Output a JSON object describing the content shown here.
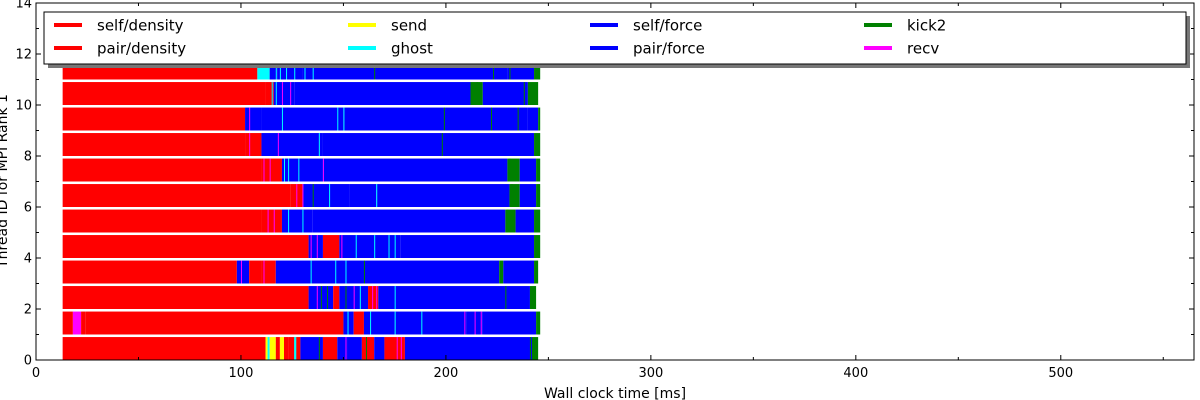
{
  "chart_data": {
    "type": "bar",
    "orientation": "horizontal-stacked-timeline",
    "title": "",
    "xlabel": "Wall clock time [ms]",
    "ylabel": "Thread ID for MPI Rank 1",
    "xlim": [
      0,
      565
    ],
    "ylim": [
      0,
      14
    ],
    "xticks": [
      0,
      100,
      200,
      300,
      400,
      500
    ],
    "yticks": [
      0,
      2,
      4,
      6,
      8,
      10,
      12,
      14
    ],
    "grid": false,
    "legend_position": "top, full width, 5 columns",
    "series": [
      {
        "name": "self/density",
        "color": "#ff0000"
      },
      {
        "name": "pair/density",
        "color": "#ff0000"
      },
      {
        "name": "send",
        "color": "#ffff00"
      },
      {
        "name": "ghost",
        "color": "#00ffff"
      },
      {
        "name": "self/force",
        "color": "#0000ff"
      },
      {
        "name": "pair/force",
        "color": "#0000ff"
      },
      {
        "name": "kick2",
        "color": "#008000"
      },
      {
        "name": "recv",
        "color": "#ff00ff"
      }
    ],
    "threads": [
      {
        "thread": 0,
        "segments": [
          [
            13,
            112,
            "red"
          ],
          [
            112,
            113,
            "yellow"
          ],
          [
            113,
            114,
            "cyan"
          ],
          [
            114,
            117,
            "yellow"
          ],
          [
            117,
            119,
            "red"
          ],
          [
            119,
            121,
            "yellow"
          ],
          [
            121,
            123,
            "red"
          ],
          [
            123,
            129,
            "red"
          ],
          [
            126,
            127,
            "cyan"
          ],
          [
            129,
            140,
            "blue"
          ],
          [
            140,
            147,
            "red"
          ],
          [
            147,
            152,
            "blue"
          ],
          [
            152,
            159,
            "blue"
          ],
          [
            159,
            165,
            "red"
          ],
          [
            165,
            170,
            "blue"
          ],
          [
            170,
            180,
            "red"
          ],
          [
            180,
            242,
            "blue"
          ],
          [
            242,
            245,
            "green"
          ]
        ]
      },
      {
        "thread": 1,
        "segments": [
          [
            13,
            18,
            "red"
          ],
          [
            18,
            22,
            "magenta"
          ],
          [
            22,
            24,
            "red"
          ],
          [
            24,
            150,
            "red"
          ],
          [
            150,
            155,
            "blue"
          ],
          [
            155,
            160,
            "red"
          ],
          [
            160,
            175,
            "blue"
          ],
          [
            175,
            210,
            "blue"
          ],
          [
            210,
            218,
            "blue"
          ],
          [
            218,
            244,
            "blue"
          ],
          [
            244,
            246,
            "green"
          ]
        ]
      },
      {
        "thread": 2,
        "segments": [
          [
            13,
            133,
            "red"
          ],
          [
            133,
            145,
            "blue"
          ],
          [
            145,
            148,
            "red"
          ],
          [
            148,
            162,
            "blue"
          ],
          [
            162,
            167,
            "red"
          ],
          [
            167,
            241,
            "blue"
          ],
          [
            241,
            244,
            "green"
          ]
        ]
      },
      {
        "thread": 3,
        "segments": [
          [
            13,
            98,
            "red"
          ],
          [
            98,
            104,
            "blue"
          ],
          [
            104,
            110,
            "red"
          ],
          [
            110,
            117,
            "red"
          ],
          [
            117,
            226,
            "blue"
          ],
          [
            226,
            228,
            "green"
          ],
          [
            228,
            243,
            "blue"
          ],
          [
            243,
            245,
            "green"
          ]
        ]
      },
      {
        "thread": 4,
        "segments": [
          [
            13,
            133,
            "red"
          ],
          [
            133,
            140,
            "blue"
          ],
          [
            140,
            148,
            "red"
          ],
          [
            148,
            178,
            "blue"
          ],
          [
            178,
            243,
            "blue"
          ],
          [
            243,
            246,
            "green"
          ]
        ]
      },
      {
        "thread": 5,
        "segments": [
          [
            13,
            110,
            "red"
          ],
          [
            110,
            120,
            "red"
          ],
          [
            120,
            135,
            "blue"
          ],
          [
            135,
            229,
            "blue"
          ],
          [
            229,
            234,
            "green"
          ],
          [
            234,
            243,
            "blue"
          ],
          [
            243,
            246,
            "green"
          ]
        ]
      },
      {
        "thread": 6,
        "segments": [
          [
            13,
            124,
            "red"
          ],
          [
            124,
            130,
            "red"
          ],
          [
            130,
            153,
            "blue"
          ],
          [
            153,
            166,
            "blue"
          ],
          [
            166,
            231,
            "blue"
          ],
          [
            231,
            236,
            "green"
          ],
          [
            236,
            244,
            "blue"
          ],
          [
            244,
            246,
            "green"
          ]
        ]
      },
      {
        "thread": 7,
        "segments": [
          [
            13,
            110,
            "red"
          ],
          [
            110,
            120,
            "red"
          ],
          [
            120,
            140,
            "blue"
          ],
          [
            140,
            230,
            "blue"
          ],
          [
            230,
            236,
            "green"
          ],
          [
            236,
            244,
            "blue"
          ],
          [
            244,
            246,
            "green"
          ]
        ]
      },
      {
        "thread": 8,
        "segments": [
          [
            13,
            102,
            "red"
          ],
          [
            102,
            110,
            "red"
          ],
          [
            110,
            140,
            "blue"
          ],
          [
            140,
            243,
            "blue"
          ],
          [
            243,
            246,
            "green"
          ]
        ]
      },
      {
        "thread": 9,
        "segments": [
          [
            13,
            102,
            "red"
          ],
          [
            102,
            110,
            "blue"
          ],
          [
            110,
            150,
            "blue"
          ],
          [
            150,
            240,
            "blue"
          ],
          [
            240,
            245,
            "blue"
          ],
          [
            245,
            246,
            "green"
          ]
        ]
      },
      {
        "thread": 10,
        "segments": [
          [
            13,
            112,
            "red"
          ],
          [
            112,
            116,
            "red"
          ],
          [
            116,
            126,
            "blue"
          ],
          [
            126,
            212,
            "blue"
          ],
          [
            212,
            218,
            "green"
          ],
          [
            218,
            240,
            "blue"
          ],
          [
            240,
            245,
            "green"
          ]
        ]
      },
      {
        "thread": 11,
        "segments": [
          [
            13,
            108,
            "red"
          ],
          [
            108,
            114,
            "cyan"
          ],
          [
            114,
            118,
            "blue"
          ],
          [
            118,
            130,
            "blue"
          ],
          [
            130,
            222,
            "blue"
          ],
          [
            222,
            230,
            "blue"
          ],
          [
            230,
            243,
            "blue"
          ],
          [
            243,
            246,
            "green"
          ]
        ]
      }
    ],
    "accents": [
      [
        0,
        126,
        "cyan"
      ],
      [
        0,
        138,
        "green"
      ],
      [
        0,
        151,
        "magenta"
      ],
      [
        0,
        161,
        "green"
      ],
      [
        0,
        176,
        "magenta"
      ],
      [
        0,
        178,
        "magenta"
      ],
      [
        0,
        241,
        "green"
      ],
      [
        1,
        152,
        "cyan"
      ],
      [
        1,
        163,
        "cyan"
      ],
      [
        1,
        175,
        "cyan"
      ],
      [
        1,
        188,
        "cyan"
      ],
      [
        1,
        209,
        "magenta"
      ],
      [
        1,
        214,
        "magenta"
      ],
      [
        1,
        217,
        "magenta"
      ],
      [
        2,
        137,
        "magenta"
      ],
      [
        2,
        139,
        "green"
      ],
      [
        2,
        142,
        "green"
      ],
      [
        2,
        151,
        "green"
      ],
      [
        2,
        155,
        "magenta"
      ],
      [
        2,
        158,
        "cyan"
      ],
      [
        2,
        164,
        "magenta"
      ],
      [
        2,
        166,
        "magenta"
      ],
      [
        2,
        175,
        "cyan"
      ],
      [
        2,
        229,
        "green"
      ],
      [
        3,
        100,
        "magenta"
      ],
      [
        3,
        111,
        "magenta"
      ],
      [
        3,
        134,
        "cyan"
      ],
      [
        3,
        146,
        "cyan"
      ],
      [
        3,
        151,
        "cyan"
      ],
      [
        3,
        160,
        "green"
      ],
      [
        4,
        134,
        "magenta"
      ],
      [
        4,
        137,
        "magenta"
      ],
      [
        4,
        149,
        "magenta"
      ],
      [
        4,
        156,
        "cyan"
      ],
      [
        4,
        165,
        "cyan"
      ],
      [
        4,
        172,
        "cyan"
      ],
      [
        4,
        175,
        "cyan"
      ],
      [
        5,
        113,
        "magenta"
      ],
      [
        5,
        116,
        "magenta"
      ],
      [
        5,
        123,
        "cyan"
      ],
      [
        5,
        130,
        "cyan"
      ],
      [
        5,
        230,
        "green"
      ],
      [
        6,
        127,
        "magenta"
      ],
      [
        6,
        130,
        "magenta"
      ],
      [
        6,
        135,
        "green"
      ],
      [
        6,
        143,
        "cyan"
      ],
      [
        6,
        166,
        "cyan"
      ],
      [
        6,
        232,
        "green"
      ],
      [
        7,
        111,
        "magenta"
      ],
      [
        7,
        114,
        "magenta"
      ],
      [
        7,
        121,
        "cyan"
      ],
      [
        7,
        123,
        "cyan"
      ],
      [
        7,
        128,
        "cyan"
      ],
      [
        7,
        140,
        "magenta"
      ],
      [
        7,
        231,
        "green"
      ],
      [
        8,
        104,
        "magenta"
      ],
      [
        8,
        118,
        "magenta"
      ],
      [
        8,
        138,
        "cyan"
      ],
      [
        8,
        198,
        "green"
      ],
      [
        9,
        104,
        "magenta"
      ],
      [
        9,
        120,
        "cyan"
      ],
      [
        9,
        147,
        "cyan"
      ],
      [
        9,
        150,
        "cyan"
      ],
      [
        9,
        199,
        "green"
      ],
      [
        9,
        222,
        "green"
      ],
      [
        9,
        235,
        "green"
      ],
      [
        10,
        115,
        "cyan"
      ],
      [
        10,
        117,
        "cyan"
      ],
      [
        10,
        120,
        "magenta"
      ],
      [
        10,
        124,
        "magenta"
      ],
      [
        10,
        215,
        "green"
      ],
      [
        10,
        238,
        "green"
      ],
      [
        11,
        110,
        "cyan"
      ],
      [
        11,
        117,
        "cyan"
      ],
      [
        11,
        119,
        "cyan"
      ],
      [
        11,
        122,
        "cyan"
      ],
      [
        11,
        126,
        "cyan"
      ],
      [
        11,
        131,
        "cyan"
      ],
      [
        11,
        135,
        "cyan"
      ],
      [
        11,
        165,
        "green"
      ],
      [
        11,
        223,
        "green"
      ],
      [
        11,
        231,
        "green"
      ]
    ]
  }
}
